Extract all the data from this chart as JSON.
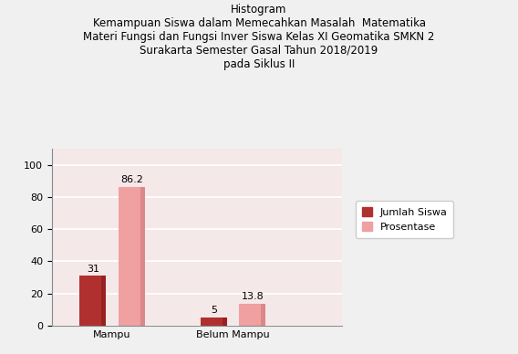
{
  "title_line1": "Histogram",
  "title_line2": "Kemampuan Siswa dalam Memecahkan Masalah  Matematika",
  "title_line3": "Materi Fungsi dan Fungsi Inver Siswa Kelas XI Geomatika SMKN 2",
  "title_line4": "Surakarta Semester Gasal Tahun 2018/2019",
  "title_line5": "pada Siklus II",
  "categories": [
    "Mampu",
    "Belum Mampu"
  ],
  "jumlah_siswa": [
    31,
    5
  ],
  "prosentase": [
    86.2,
    13.8
  ],
  "color_jumlah": "#B03030",
  "color_prosentase": "#F0A0A0",
  "color_jumlah_top": "#C84040",
  "color_prosentase_top": "#F8C0C0",
  "color_jumlah_dark": "#881818",
  "color_prosentase_dark": "#D07878",
  "ylim": [
    0,
    110
  ],
  "yticks": [
    0,
    20,
    40,
    60,
    80,
    100
  ],
  "legend_jumlah": "Jumlah Siswa",
  "legend_prosentase": "Prosentase",
  "bg_plot": "#F5E8E8",
  "bg_wall": "#E8D8D8",
  "bg_floor": "#D0C0C0",
  "bg_fig": "#F0F0F0",
  "title_fontsize": 8.5,
  "label_fontsize": 8,
  "tick_fontsize": 8
}
